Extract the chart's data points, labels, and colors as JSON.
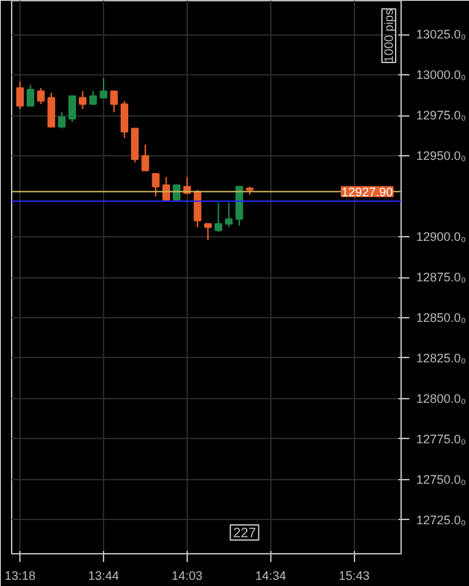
{
  "chart_data": {
    "type": "candlestick",
    "categories": [
      "13:18",
      null,
      null,
      null,
      null,
      null,
      null,
      null,
      "13:44",
      null,
      null,
      null,
      null,
      null,
      null,
      null,
      "14:03",
      null,
      null,
      null,
      null,
      null,
      null,
      null,
      "14:34",
      null,
      null,
      null,
      null,
      null,
      null,
      null,
      "15:43",
      null,
      null,
      null,
      null
    ],
    "ohlc": [
      [
        12992,
        12996,
        12979,
        12981
      ],
      [
        12981,
        12994,
        12981,
        12991
      ],
      [
        12990,
        12992,
        12982,
        12984
      ],
      [
        12986,
        12989,
        12968,
        12968
      ],
      [
        12968,
        12977,
        12967,
        12974
      ],
      [
        12973,
        12987,
        12971,
        12987
      ],
      [
        12986,
        12990,
        12979,
        12982
      ],
      [
        12982,
        12990,
        12982,
        12987
      ],
      [
        12986,
        12998,
        12986,
        12990
      ],
      [
        12990,
        12990,
        12977,
        12982
      ],
      [
        12982,
        12984,
        12961,
        12965
      ],
      [
        12967,
        12967,
        12946,
        12948
      ],
      [
        12950,
        12957,
        12941,
        12941
      ],
      [
        12939,
        12939,
        12925,
        12931
      ],
      [
        12932,
        12937,
        12923,
        12923
      ],
      [
        12923,
        12932,
        12923,
        12932
      ],
      [
        12931,
        12937,
        12927,
        12927
      ],
      [
        12928,
        12929,
        12906,
        12910
      ],
      [
        12908,
        12908,
        12898,
        12906
      ],
      [
        12904,
        12921,
        12903,
        12908
      ],
      [
        12908,
        12921,
        12906,
        12911
      ],
      [
        12911,
        12931,
        12907,
        12931
      ],
      [
        12930,
        12931,
        12926,
        12929
      ],
      null,
      null,
      null,
      null,
      null,
      null,
      null,
      null,
      null,
      null,
      null,
      null,
      null,
      null
    ],
    "colors": [
      "#e8602c",
      "#1e8a4a",
      "#e8602c",
      "#e8602c",
      "#1e8a4a",
      "#1e8a4a",
      "#e8602c",
      "#1e8a4a",
      "#1e8a4a",
      "#e8602c",
      "#e8602c",
      "#e8602c",
      "#e8602c",
      "#e8602c",
      "#e8602c",
      "#1e8a4a",
      "#e8602c",
      "#e8602c",
      "#e8602c",
      "#1e8a4a",
      "#1e8a4a",
      "#1e8a4a",
      "#e8602c",
      null,
      null,
      null,
      null,
      null,
      null,
      null,
      null,
      null,
      null,
      null,
      null,
      null,
      null
    ],
    "ylim": [
      12704,
      13046
    ],
    "yticks": [
      {
        "value": 12725,
        "label": "12725.0₀"
      },
      {
        "value": 12750,
        "label": "12750.0₀"
      },
      {
        "value": 12775,
        "label": "12775.0₀"
      },
      {
        "value": 12800,
        "label": "12800.0₀"
      },
      {
        "value": 12825,
        "label": "12825.0₀"
      },
      {
        "value": 12850,
        "label": "12850.0₀"
      },
      {
        "value": 12875,
        "label": "12875.0₀"
      },
      {
        "value": 12900,
        "label": "12900.0₀"
      },
      {
        "value": 12950,
        "label": "12950.0₀"
      },
      {
        "value": 12975,
        "label": "12975.0₀"
      },
      {
        "value": 13000,
        "label": "13000.0₀"
      },
      {
        "value": 13025,
        "label": "13025.0₀"
      }
    ],
    "ref_lines": [
      {
        "axis": "y",
        "value": 12927.9,
        "label": "12927.90",
        "color": "#c8b45a"
      },
      {
        "axis": "y",
        "value": 12922,
        "color": "#2a2aff"
      }
    ],
    "annotations": [
      "1000 pips",
      "227"
    ],
    "grid": true
  }
}
